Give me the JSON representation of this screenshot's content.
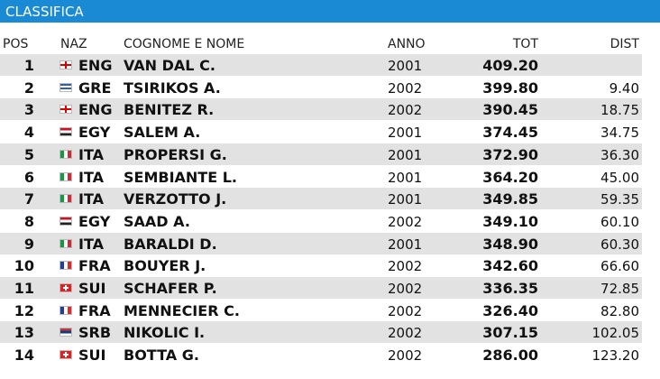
{
  "header": {
    "title": "CLASSIFICA"
  },
  "table": {
    "columns": [
      "POS",
      "NAZ",
      "COGNOME E NOME",
      "ANNO",
      "TOT",
      "DIST"
    ],
    "rows": [
      {
        "pos": "1",
        "naz": "ENG",
        "name": "VAN DAL C.",
        "year": "2001",
        "tot": "409.20"
      },
      {
        "pos": "2",
        "naz": "GRE",
        "name": "TSIRIKOS A.",
        "year": "2002",
        "tot": "399.80",
        "dist": "9.40"
      },
      {
        "pos": "3",
        "naz": "ENG",
        "name": "BENITEZ R.",
        "year": "2002",
        "tot": "390.45",
        "dist": "18.75"
      },
      {
        "pos": "4",
        "naz": "EGY",
        "name": "SALEM A.",
        "year": "2001",
        "tot": "374.45",
        "dist": "34.75"
      },
      {
        "pos": "5",
        "naz": "ITA",
        "name": "PROPERSI G.",
        "year": "2001",
        "tot": "372.90",
        "dist": "36.30"
      },
      {
        "pos": "6",
        "naz": "ITA",
        "name": "SEMBIANTE L.",
        "year": "2001",
        "tot": "364.20",
        "dist": "45.00"
      },
      {
        "pos": "7",
        "naz": "ITA",
        "name": "VERZOTTO J.",
        "year": "2001",
        "tot": "349.85",
        "dist": "59.35"
      },
      {
        "pos": "8",
        "naz": "EGY",
        "name": "SAAD A.",
        "year": "2002",
        "tot": "349.10",
        "dist": "60.10"
      },
      {
        "pos": "9",
        "naz": "ITA",
        "name": "BARALDI D.",
        "year": "2001",
        "tot": "348.90",
        "dist": "60.30"
      },
      {
        "pos": "10",
        "naz": "FRA",
        "name": "BOUYER J.",
        "year": "2002",
        "tot": "342.60",
        "dist": "66.60"
      },
      {
        "pos": "11",
        "naz": "SUI",
        "name": "SCHAFER P.",
        "year": "2002",
        "tot": "336.35",
        "dist": "72.85"
      },
      {
        "pos": "12",
        "naz": "FRA",
        "name": "MENNECIER C.",
        "year": "2002",
        "tot": "326.40",
        "dist": "82.80"
      },
      {
        "pos": "13",
        "naz": "SRB",
        "name": "NIKOLIC I.",
        "year": "2002",
        "tot": "307.15",
        "dist": "102.05"
      },
      {
        "pos": "14",
        "naz": "SUI",
        "name": "BOTTA G.",
        "year": "2002",
        "tot": "286.00",
        "dist": "123.20"
      }
    ]
  }
}
